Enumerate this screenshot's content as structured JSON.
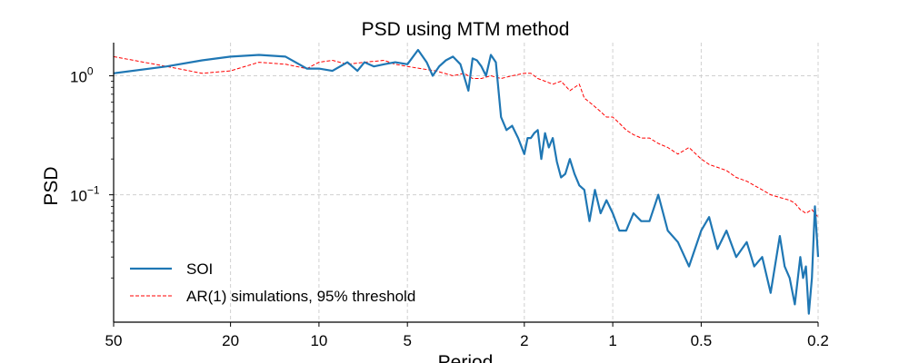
{
  "chart_data": {
    "type": "line",
    "title": "PSD using MTM method",
    "xlabel": "Period",
    "ylabel": "PSD",
    "x_scale": "log-reversed",
    "y_scale": "log",
    "xlim": [
      50,
      0.2
    ],
    "ylim": [
      0.0085,
      1.9
    ],
    "xticks": [
      {
        "value": 50,
        "label": "50"
      },
      {
        "value": 20,
        "label": "20"
      },
      {
        "value": 10,
        "label": "10"
      },
      {
        "value": 5,
        "label": "5"
      },
      {
        "value": 2,
        "label": "2"
      },
      {
        "value": 1,
        "label": "1"
      },
      {
        "value": 0.5,
        "label": "0.5"
      },
      {
        "value": 0.2,
        "label": "0.2"
      }
    ],
    "yticks": [
      {
        "value": 1,
        "base": "10",
        "exp": "0"
      },
      {
        "value": 0.1,
        "base": "10",
        "exp": "−1"
      }
    ],
    "grid": true,
    "legend_position": "lower-left",
    "series": [
      {
        "name": "SOI",
        "color": "#1f77b4",
        "style": "solid",
        "x": [
          50,
          33,
          25,
          20,
          16,
          13,
          11,
          10,
          9,
          8,
          7.4,
          7,
          6.5,
          6,
          5.5,
          5,
          4.6,
          4.3,
          4.1,
          3.9,
          3.7,
          3.5,
          3.3,
          3.1,
          3.0,
          2.9,
          2.8,
          2.7,
          2.6,
          2.5,
          2.4,
          2.3,
          2.2,
          2.1,
          2.0,
          1.95,
          1.9,
          1.85,
          1.8,
          1.75,
          1.7,
          1.65,
          1.6,
          1.55,
          1.5,
          1.45,
          1.4,
          1.35,
          1.3,
          1.25,
          1.2,
          1.15,
          1.1,
          1.05,
          1.0,
          0.95,
          0.9,
          0.85,
          0.8,
          0.75,
          0.7,
          0.65,
          0.6,
          0.55,
          0.5,
          0.47,
          0.44,
          0.41,
          0.38,
          0.35,
          0.33,
          0.31,
          0.29,
          0.27,
          0.26,
          0.25,
          0.24,
          0.23,
          0.225,
          0.22,
          0.215,
          0.21,
          0.205,
          0.2
        ],
        "y": [
          1.05,
          1.2,
          1.35,
          1.45,
          1.5,
          1.45,
          1.15,
          1.15,
          1.1,
          1.3,
          1.1,
          1.3,
          1.2,
          1.25,
          1.3,
          1.25,
          1.65,
          1.3,
          1.0,
          1.2,
          1.35,
          1.45,
          1.25,
          0.75,
          1.4,
          1.35,
          1.2,
          1.0,
          1.5,
          1.3,
          0.45,
          0.35,
          0.38,
          0.3,
          0.22,
          0.3,
          0.3,
          0.33,
          0.35,
          0.2,
          0.33,
          0.25,
          0.3,
          0.19,
          0.14,
          0.15,
          0.2,
          0.15,
          0.12,
          0.11,
          0.06,
          0.11,
          0.07,
          0.09,
          0.07,
          0.05,
          0.05,
          0.07,
          0.06,
          0.06,
          0.1,
          0.05,
          0.04,
          0.025,
          0.05,
          0.065,
          0.035,
          0.05,
          0.03,
          0.04,
          0.025,
          0.03,
          0.015,
          0.045,
          0.025,
          0.02,
          0.012,
          0.03,
          0.02,
          0.025,
          0.01,
          0.02,
          0.08,
          0.03
        ]
      },
      {
        "name": "AR(1) simulations, 95% threshold",
        "color": "#ff0000",
        "style": "dashed",
        "x": [
          50,
          33,
          25,
          20,
          16,
          13,
          11,
          10,
          9,
          8,
          7,
          6,
          5.5,
          5,
          4.5,
          4,
          3.5,
          3.2,
          3.0,
          2.8,
          2.6,
          2.4,
          2.2,
          2.0,
          1.9,
          1.8,
          1.7,
          1.6,
          1.5,
          1.4,
          1.3,
          1.25,
          1.2,
          1.15,
          1.1,
          1.05,
          1.0,
          0.95,
          0.9,
          0.85,
          0.8,
          0.75,
          0.7,
          0.65,
          0.6,
          0.55,
          0.5,
          0.47,
          0.44,
          0.41,
          0.38,
          0.35,
          0.33,
          0.31,
          0.29,
          0.27,
          0.25,
          0.24,
          0.23,
          0.22,
          0.21,
          0.2
        ],
        "y": [
          1.45,
          1.2,
          1.05,
          1.1,
          1.3,
          1.25,
          1.15,
          1.3,
          1.35,
          1.25,
          1.3,
          1.35,
          1.25,
          1.2,
          1.15,
          1.1,
          1.0,
          1.05,
          0.95,
          0.95,
          1.0,
          0.95,
          1.0,
          1.05,
          1.05,
          0.95,
          0.9,
          0.85,
          0.9,
          0.75,
          0.85,
          0.65,
          0.6,
          0.55,
          0.5,
          0.45,
          0.45,
          0.4,
          0.35,
          0.32,
          0.3,
          0.3,
          0.27,
          0.25,
          0.22,
          0.25,
          0.2,
          0.18,
          0.17,
          0.16,
          0.14,
          0.13,
          0.12,
          0.11,
          0.1,
          0.095,
          0.09,
          0.085,
          0.075,
          0.07,
          0.075,
          0.065
        ]
      }
    ]
  }
}
